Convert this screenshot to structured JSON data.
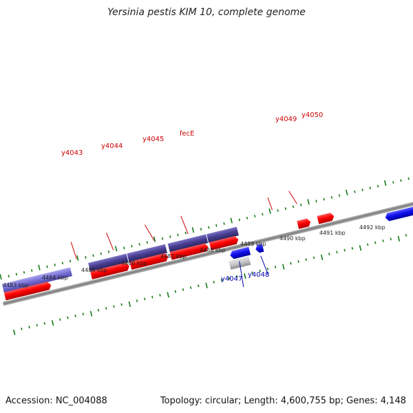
{
  "title": "Yersinia pestis KIM 10, complete genome",
  "footer": {
    "accession": "Accession: NC_004088",
    "summary": "Topology: circular; Length: 4,600,755 bp; Genes: 4,148"
  },
  "colors": {
    "plus_gene": "#ff0000",
    "minus_gene": "#1111ee",
    "cds_purple": "#4a3f94",
    "cds_light_purple": "#7b74d8",
    "pseudo_grey": "#c8c8c8",
    "tick_green": "#157a15",
    "backbone": "#888888",
    "plus_label": "#cc0000",
    "minus_label": "#0000aa"
  },
  "scale_labels": [
    {
      "text": "4483 kbp"
    },
    {
      "text": "4484 kbp"
    },
    {
      "text": "4485 kbp"
    },
    {
      "text": "4486 kbp"
    },
    {
      "text": "4487 kbp"
    },
    {
      "text": "4488 kbp"
    },
    {
      "text": "4489 kbp"
    },
    {
      "text": "4490 kbp"
    },
    {
      "text": "4491 kbp"
    },
    {
      "text": "4492 kbp"
    }
  ],
  "gene_labels": [
    {
      "text": "y4043",
      "strand": "plus"
    },
    {
      "text": "y4044",
      "strand": "plus"
    },
    {
      "text": "y4045",
      "strand": "plus"
    },
    {
      "text": "fecE",
      "strand": "plus"
    },
    {
      "text": "y4049",
      "strand": "plus"
    },
    {
      "text": "y4050",
      "strand": "plus"
    },
    {
      "text": "y4047",
      "strand": "minus"
    },
    {
      "text": "y4048",
      "strand": "minus"
    }
  ]
}
